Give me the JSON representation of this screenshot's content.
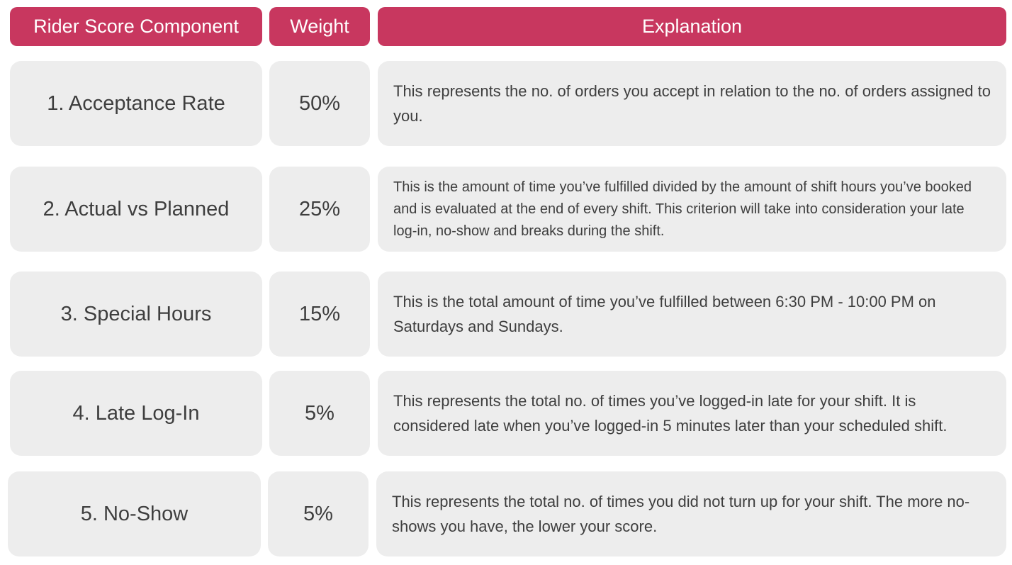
{
  "header": {
    "component_label": "Rider Score Component",
    "weight_label": "Weight",
    "explanation_label": "Explanation"
  },
  "theme": {
    "header_bg": "#c8375f",
    "cell_bg": "#ededed",
    "text_color": "#3e3e3e"
  },
  "rows": [
    {
      "component": "1. Acceptance Rate",
      "weight": "50%",
      "explanation": "This represents the no. of orders you accept in relation to the no. of orders assigned to you."
    },
    {
      "component": "2. Actual vs Planned",
      "weight": "25%",
      "explanation": "This is the amount of time you’ve fulfilled divided by the amount of shift hours you’ve booked and is evaluated at the end of every shift. This criterion will take into consideration your late log-in, no-show and breaks during the shift."
    },
    {
      "component": "3. Special Hours",
      "weight": "15%",
      "explanation": "This is the total amount of time you’ve fulfilled between 6:30 PM - 10:00 PM on Saturdays and Sundays."
    },
    {
      "component": "4. Late Log-In",
      "weight": "5%",
      "explanation": "This represents the total no. of times you’ve logged-in late for your shift. It is considered late when you’ve logged-in 5 minutes later than your scheduled shift."
    },
    {
      "component": "5. No-Show",
      "weight": "5%",
      "explanation": "This represents the total no. of times you did not turn up for your shift. The more no-shows you have, the lower your score."
    }
  ]
}
